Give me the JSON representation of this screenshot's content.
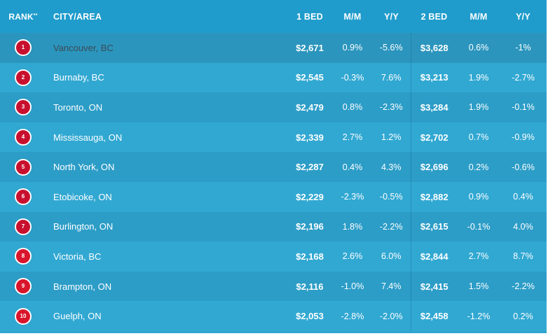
{
  "header": {
    "rank": "RANK",
    "rank_mark": "**",
    "city": "CITY/AREA",
    "bed1": "1 BED",
    "mm1": "M/M",
    "yy1": "Y/Y",
    "bed2": "2 BED",
    "mm2": "M/M",
    "yy2": "Y/Y"
  },
  "rows": [
    {
      "rank": "1",
      "city": "Vancouver, BC",
      "bed1": "$2,671",
      "mm1": "0.9%",
      "yy1": "-5.6%",
      "bed2": "$3,628",
      "mm2": "0.6%",
      "yy2": "-1%"
    },
    {
      "rank": "2",
      "city": "Burnaby, BC",
      "bed1": "$2,545",
      "mm1": "-0.3%",
      "yy1": "7.6%",
      "bed2": "$3,213",
      "mm2": "1.9%",
      "yy2": "-2.7%"
    },
    {
      "rank": "3",
      "city": "Toronto, ON",
      "bed1": "$2,479",
      "mm1": "0.8%",
      "yy1": "-2.3%",
      "bed2": "$3,284",
      "mm2": "1.9%",
      "yy2": "-0.1%"
    },
    {
      "rank": "4",
      "city": "Mississauga, ON",
      "bed1": "$2,339",
      "mm1": "2.7%",
      "yy1": "1.2%",
      "bed2": "$2,702",
      "mm2": "0.7%",
      "yy2": "-0.9%"
    },
    {
      "rank": "5",
      "city": "North York, ON",
      "bed1": "$2,287",
      "mm1": "0.4%",
      "yy1": "4.3%",
      "bed2": "$2,696",
      "mm2": "0.2%",
      "yy2": "-0.6%"
    },
    {
      "rank": "6",
      "city": "Etobicoke, ON",
      "bed1": "$2,229",
      "mm1": "-2.3%",
      "yy1": "-0.5%",
      "bed2": "$2,882",
      "mm2": "0.9%",
      "yy2": "0.4%"
    },
    {
      "rank": "7",
      "city": "Burlington, ON",
      "bed1": "$2,196",
      "mm1": "1.8%",
      "yy1": "-2.2%",
      "bed2": "$2,615",
      "mm2": "-0.1%",
      "yy2": "4.0%"
    },
    {
      "rank": "8",
      "city": "Victoria, BC",
      "bed1": "$2,168",
      "mm1": "2.6%",
      "yy1": "6.0%",
      "bed2": "$2,844",
      "mm2": "2.7%",
      "yy2": "8.7%"
    },
    {
      "rank": "9",
      "city": "Brampton, ON",
      "bed1": "$2,116",
      "mm1": "-1.0%",
      "yy1": "7.4%",
      "bed2": "$2,415",
      "mm2": "1.5%",
      "yy2": "-2.2%"
    },
    {
      "rank": "10",
      "city": "Guelph, ON",
      "bed1": "$2,053",
      "mm1": "-2.8%",
      "yy1": "-2.0%",
      "bed2": "$2,458",
      "mm2": "-1.2%",
      "yy2": "0.2%"
    }
  ],
  "colors": {
    "header_bg": "#1f9ccc",
    "row_bg": "#31a8d2",
    "row_alt_bg": "#2c9dc7",
    "badge": "#c8102e"
  }
}
